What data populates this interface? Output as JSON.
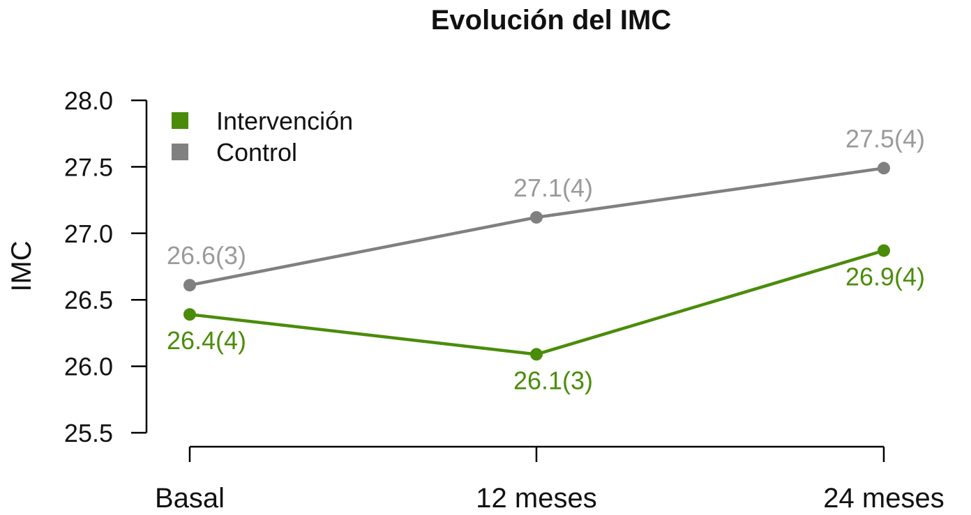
{
  "chart_data": {
    "type": "line",
    "title": "Evolución del IMC",
    "xlabel": "",
    "ylabel": "IMC",
    "categories": [
      "Basal",
      "12 meses",
      "24 meses"
    ],
    "ylim": [
      25.5,
      28.0
    ],
    "yticks": [
      "25.5",
      "26.0",
      "26.5",
      "27.0",
      "27.5",
      "28.0"
    ],
    "grid": false,
    "legend_position": "top-left",
    "series": [
      {
        "name": "Intervención",
        "color": "#4a8c0a",
        "label_color": "#4a8c0a",
        "values": [
          26.39,
          26.09,
          26.87
        ],
        "labels": [
          "26.4(4)",
          "26.1(3)",
          "26.9(4)"
        ],
        "label_side": "below"
      },
      {
        "name": "Control",
        "color": "#808080",
        "label_color": "#9a9a9a",
        "values": [
          26.61,
          27.12,
          27.49
        ],
        "labels": [
          "26.6(3)",
          "27.1(4)",
          "27.5(4)"
        ],
        "label_side": "above"
      }
    ]
  }
}
